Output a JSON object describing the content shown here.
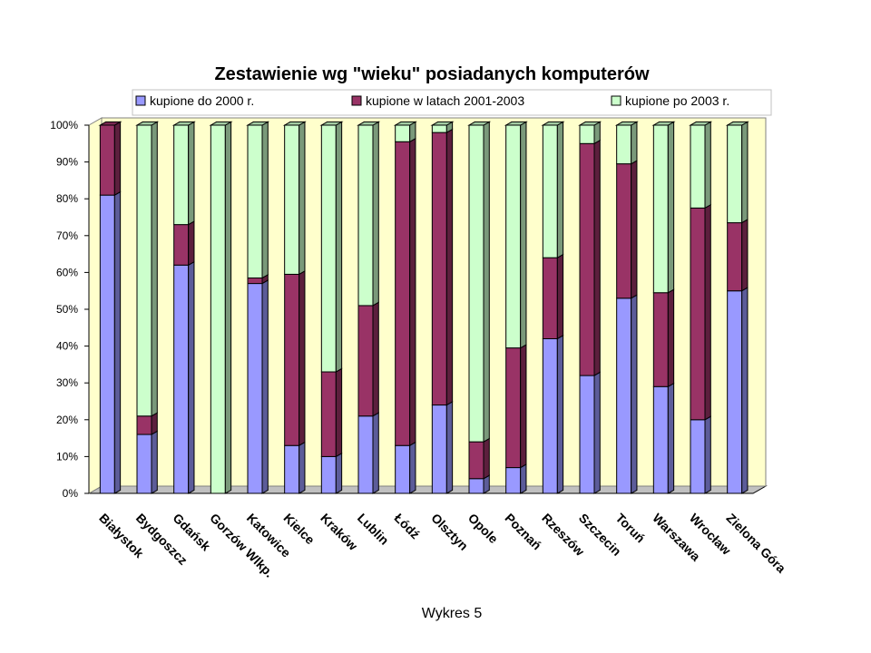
{
  "chart_data": {
    "type": "bar",
    "stacked": true,
    "percent": true,
    "title": "Zestawienie wg \"wieku\" posiadanych komputerów",
    "caption": "Wykres 5",
    "categories": [
      "Białystok",
      "Bydgoszcz",
      "Gdańsk",
      "Gorzów Wlkp.",
      "Katowice",
      "Kielce",
      "Kraków",
      "Lublin",
      "Łódź",
      "Olsztyn",
      "Opole",
      "Poznań",
      "Rzeszów",
      "Szczecin",
      "Toruń",
      "Warszawa",
      "Wrocław",
      "Zielona Góra"
    ],
    "series": [
      {
        "name": "kupione do 2000 r.",
        "color": "#9999ff",
        "values": [
          81,
          16,
          62,
          0,
          57,
          13,
          10,
          21,
          13,
          24,
          4,
          7,
          42,
          32,
          53,
          29,
          20,
          55
        ]
      },
      {
        "name": "kupione w latach 2001-2003",
        "color": "#993366",
        "values": [
          19,
          5,
          11,
          0,
          1.5,
          46.5,
          23,
          30,
          82.5,
          74,
          10,
          32.5,
          22,
          63,
          36.5,
          25.5,
          57.5,
          18.5
        ]
      },
      {
        "name": "kupione po 2003 r.",
        "color": "#ccffcc",
        "values": [
          0,
          79,
          27,
          100,
          41.5,
          40.5,
          67,
          49,
          4.5,
          2,
          86,
          60.5,
          36,
          5,
          10.5,
          45.5,
          22.5,
          26.5
        ]
      }
    ],
    "ylim": [
      0,
      100
    ],
    "yticks": [
      "0%",
      "10%",
      "20%",
      "30%",
      "40%",
      "50%",
      "60%",
      "70%",
      "80%",
      "90%",
      "100%"
    ],
    "legend_position": "top",
    "grid": false,
    "plot_background": "#ffffcc",
    "chart_background": "#ffffff"
  }
}
